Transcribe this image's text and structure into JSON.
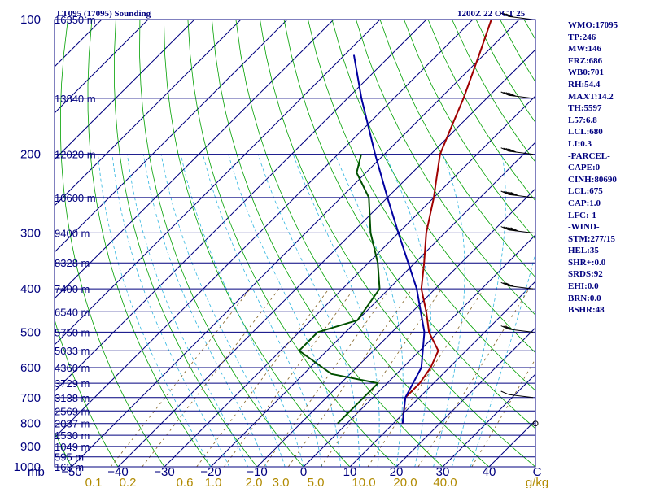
{
  "chart_data": {
    "type": "skew-t sounding",
    "title": "LT095 (17095) Sounding",
    "valid_time": "1200Z 22 OCT 25",
    "pressure_levels": [
      100,
      200,
      300,
      400,
      500,
      600,
      700,
      800,
      900,
      1000
    ],
    "pressure_axis_label": "mb",
    "temperature_ticks": [
      -50,
      -40,
      -30,
      -20,
      -10,
      0,
      10,
      20,
      30,
      40
    ],
    "temperature_unit": "C",
    "mixing_ratio_ticks": [
      "0.1",
      "0.2",
      "0.6",
      "1.0",
      "2.0",
      "3.0",
      "5.0",
      "10.0",
      "20.0",
      "40.0"
    ],
    "mixing_ratio_unit": "g/kg",
    "height_labels": [
      {
        "p": 100,
        "label": "16350 m"
      },
      {
        "p": 150,
        "label": "13840 m"
      },
      {
        "p": 200,
        "label": "12020 m"
      },
      {
        "p": 250,
        "label": "10600 m"
      },
      {
        "p": 300,
        "label": "9400 m"
      },
      {
        "p": 350,
        "label": "8328 m"
      },
      {
        "p": 400,
        "label": "7400 m"
      },
      {
        "p": 450,
        "label": "6540 m"
      },
      {
        "p": 500,
        "label": "5750 m"
      },
      {
        "p": 550,
        "label": "5033 m"
      },
      {
        "p": 600,
        "label": "4360 m"
      },
      {
        "p": 650,
        "label": "3729 m"
      },
      {
        "p": 700,
        "label": "3138 m"
      },
      {
        "p": 750,
        "label": "2569 m"
      },
      {
        "p": 800,
        "label": "2037 m"
      },
      {
        "p": 850,
        "label": "1530 m"
      },
      {
        "p": 900,
        "label": "1049 m"
      },
      {
        "p": 950,
        "label": "595 m"
      },
      {
        "p": 1000,
        "label": "163 m"
      }
    ],
    "series": [
      {
        "name": "Temperature",
        "color": "#a00000",
        "points": [
          [
            800,
            12
          ],
          [
            700,
            7
          ],
          [
            650,
            7
          ],
          [
            600,
            6
          ],
          [
            550,
            4
          ],
          [
            500,
            -2
          ],
          [
            450,
            -7
          ],
          [
            400,
            -13
          ],
          [
            350,
            -18
          ],
          [
            300,
            -24
          ],
          [
            250,
            -30
          ],
          [
            230,
            -33
          ],
          [
            200,
            -38
          ],
          [
            170,
            -42
          ],
          [
            150,
            -45
          ],
          [
            120,
            -51
          ],
          [
            100,
            -56
          ]
        ]
      },
      {
        "name": "Dewpoint",
        "color": "#005000",
        "points": [
          [
            800,
            -2
          ],
          [
            700,
            -2
          ],
          [
            650,
            -2
          ],
          [
            620,
            -14
          ],
          [
            550,
            -26
          ],
          [
            500,
            -26
          ],
          [
            470,
            -20
          ],
          [
            400,
            -22
          ],
          [
            350,
            -28
          ],
          [
            300,
            -36
          ],
          [
            250,
            -44
          ],
          [
            220,
            -52
          ],
          [
            200,
            -55
          ]
        ]
      },
      {
        "name": "Parcel",
        "color": "#0000a0",
        "points": [
          [
            800,
            12
          ],
          [
            700,
            7
          ],
          [
            600,
            4
          ],
          [
            500,
            -3
          ],
          [
            400,
            -14
          ],
          [
            300,
            -30
          ],
          [
            250,
            -40
          ],
          [
            200,
            -52
          ],
          [
            150,
            -67
          ],
          [
            120,
            -78
          ]
        ]
      }
    ],
    "wind_barbs": [
      {
        "p": 100,
        "dir": 277,
        "speed": 30
      },
      {
        "p": 150,
        "dir": 277,
        "speed": 40
      },
      {
        "p": 200,
        "dir": 277,
        "speed": 40
      },
      {
        "p": 250,
        "dir": 277,
        "speed": 50
      },
      {
        "p": 300,
        "dir": 277,
        "speed": 50
      },
      {
        "p": 400,
        "dir": 277,
        "speed": 30
      },
      {
        "p": 500,
        "dir": 277,
        "speed": 30
      },
      {
        "p": 700,
        "dir": 277,
        "speed": 10
      },
      {
        "p": 800,
        "dir": 0,
        "speed": 0
      }
    ]
  },
  "indices": [
    "WMO:17095",
    "TP:246",
    "MW:146",
    "FRZ:686",
    "WB0:701",
    "RH:54.4",
    "MAXT:14.2",
    "TH:5597",
    "L57:6.8",
    "LCL:680",
    "LI:0.3",
    "-PARCEL-",
    "CAPE:0",
    "CINH:80690",
    "LCL:675",
    "CAP:1.0",
    "LFC:-1",
    "-WIND-",
    "STM:277/15",
    "HEL:35",
    "SHR+:0.0",
    "SRDS:92",
    "EHI:0.0",
    "BRN:0.0",
    "BSHR:48"
  ],
  "colors": {
    "isobar": "#00007f",
    "isotherm": "#00007f",
    "dry_adiabat": "#00a000",
    "moist_adiabat": "#2fb5e0",
    "mixing_ratio": "#806020",
    "axis_text": "#00007f",
    "mixing_text": "#b08a00"
  }
}
